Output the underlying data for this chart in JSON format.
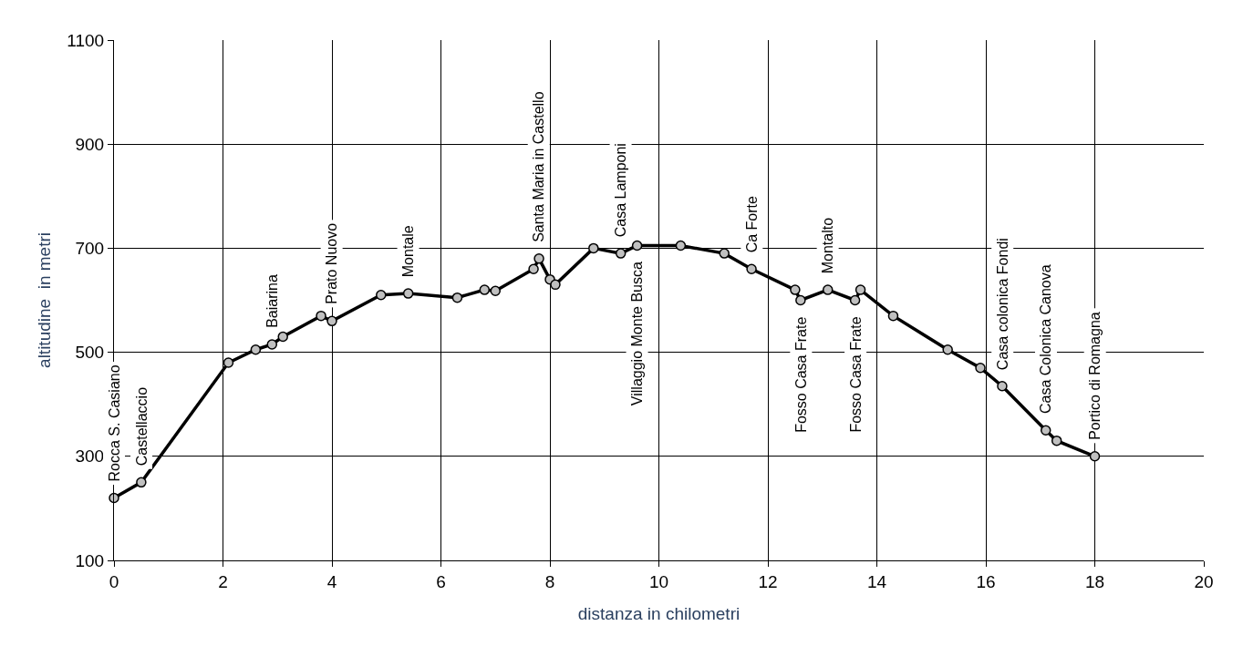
{
  "chart_data": {
    "type": "line",
    "xlabel": "distanza in chilometri",
    "ylabel": "altitudine  in metri",
    "x": [
      0,
      0.5,
      2.1,
      2.6,
      2.9,
      3.1,
      3.8,
      4.0,
      4.9,
      5.4,
      6.3,
      6.8,
      7.0,
      7.7,
      7.8,
      8.0,
      8.1,
      8.8,
      9.3,
      9.6,
      10.4,
      11.2,
      11.7,
      12.5,
      12.6,
      13.1,
      13.6,
      13.7,
      14.3,
      15.3,
      15.9,
      16.3,
      17.1,
      17.3,
      18.0
    ],
    "series": [
      {
        "color": "#000000",
        "values": [
          220,
          250,
          480,
          505,
          515,
          530,
          570,
          560,
          610,
          613,
          605,
          620,
          618,
          660,
          680,
          640,
          630,
          700,
          690,
          705,
          705,
          690,
          660,
          620,
          600,
          620,
          600,
          620,
          570,
          505,
          470,
          435,
          350,
          330,
          300
        ]
      }
    ],
    "xlim": [
      0,
      20
    ],
    "xticks": [
      0,
      2,
      4,
      6,
      8,
      10,
      12,
      14,
      16,
      18,
      20
    ],
    "ylim": [
      100,
      1100
    ],
    "yticks": [
      100,
      300,
      500,
      700,
      900,
      1100
    ],
    "grid": true,
    "marker": "circle",
    "line_style": "solid",
    "annotations": [
      {
        "text": "Rocca S. Casiano",
        "x": 0,
        "y": 220
      },
      {
        "text": "Castellaccio",
        "x": 0.5,
        "y": 250
      },
      {
        "text": "Baiarina",
        "x": 2.9,
        "y": 515
      },
      {
        "text": "Prato Nuovo",
        "x": 4.0,
        "y": 560
      },
      {
        "text": "Montale",
        "x": 5.4,
        "y": 613
      },
      {
        "text": "Santa Maria in Castello",
        "x": 7.8,
        "y": 680
      },
      {
        "text": "Casa Lamponi",
        "x": 9.3,
        "y": 690
      },
      {
        "text": "Villaggio Monte Busca",
        "x": 9.6,
        "y": 705
      },
      {
        "text": "Ca Forte",
        "x": 11.7,
        "y": 660
      },
      {
        "text": "Fosso Casa Frate",
        "x": 12.6,
        "y": 600
      },
      {
        "text": "Montalto",
        "x": 13.1,
        "y": 620
      },
      {
        "text": "Fosso Casa Frate",
        "x": 13.6,
        "y": 600
      },
      {
        "text": "Casa colonica Fondi",
        "x": 16.3,
        "y": 435
      },
      {
        "text": "Casa Colonica Canova",
        "x": 17.1,
        "y": 350
      },
      {
        "text": "Portico di Romagna",
        "x": 18.0,
        "y": 300
      }
    ]
  }
}
